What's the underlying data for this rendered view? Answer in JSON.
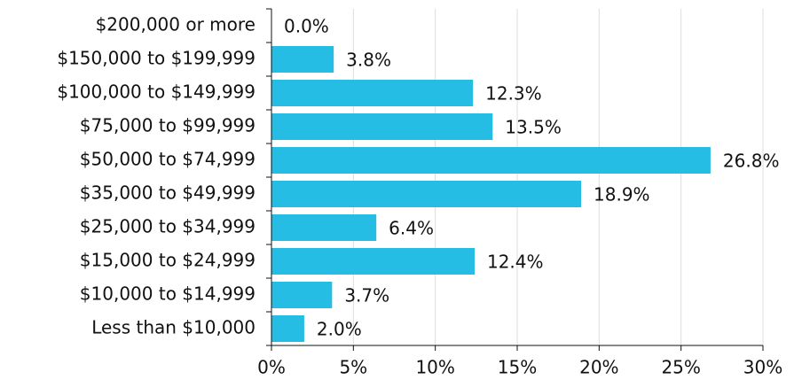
{
  "chart_data": {
    "type": "bar",
    "orientation": "horizontal",
    "categories": [
      "$200,000 or more",
      "$150,000 to $199,999",
      "$100,000 to $149,999",
      "$75,000 to $99,999",
      "$50,000 to $74,999",
      "$35,000 to $49,999",
      "$25,000 to $34,999",
      "$15,000 to $24,999",
      "$10,000 to $14,999",
      "Less than $10,000"
    ],
    "values": [
      0.0,
      3.8,
      12.3,
      13.5,
      26.8,
      18.9,
      6.4,
      12.4,
      3.7,
      2.0
    ],
    "value_labels": [
      "0.0%",
      "3.8%",
      "12.3%",
      "13.5%",
      "26.8%",
      "18.9%",
      "6.4%",
      "12.4%",
      "3.7%",
      "2.0%"
    ],
    "color": "#25bde3",
    "xlim": [
      0,
      30
    ],
    "xticks": [
      {
        "value": 0,
        "label": "0%"
      },
      {
        "value": 5,
        "label": "5%"
      },
      {
        "value": 10,
        "label": "10%"
      },
      {
        "value": 15,
        "label": "15%"
      },
      {
        "value": 20,
        "label": "20%"
      },
      {
        "value": 25,
        "label": "25%"
      },
      {
        "value": 30,
        "label": "30%"
      }
    ],
    "grid": true
  }
}
